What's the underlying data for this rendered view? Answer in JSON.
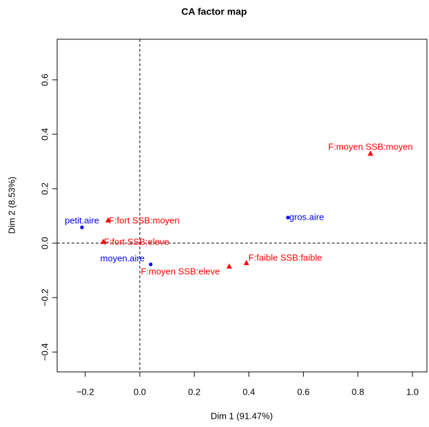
{
  "chart_data": {
    "type": "scatter",
    "title": "CA factor map",
    "xlabel": "Dim 1 (91.47%)",
    "ylabel": "Dim 2 (8.53%)",
    "xlim": [
      -0.303,
      1.053
    ],
    "ylim": [
      -0.473,
      0.749
    ],
    "xticks": [
      {
        "value": -0.2,
        "label": "−0.2"
      },
      {
        "value": 0,
        "label": "0.0"
      },
      0.2,
      0.4,
      0.6,
      0.8,
      {
        "value": 1,
        "label": "1.0"
      }
    ],
    "yticks": [
      {
        "value": -0.4,
        "label": "−0.4"
      },
      {
        "value": -0.2,
        "label": "−0.2"
      },
      {
        "value": 0,
        "label": "0.0"
      },
      0.2,
      0.4,
      0.6
    ],
    "hlines": [
      0
    ],
    "vlines": [
      0
    ],
    "series": [
      {
        "color": "#0000ff",
        "marker": "circle",
        "labels": [
          "petit.aire",
          "gros.aire",
          "moyen.aire"
        ],
        "x": [
          -0.212,
          0.543,
          0.04
        ],
        "y": [
          0.058,
          0.094,
          -0.078
        ]
      },
      {
        "color": "#ff0000",
        "marker": "triangle",
        "labels": [
          "F:fort SSB:moyen",
          "F:fort SSB:eleve",
          "F:moyen SSB:eleve",
          "F:faible SSB:faible",
          "F:moyen SSB:moyen"
        ],
        "x": [
          -0.116,
          -0.134,
          0.328,
          0.391,
          0.846
        ],
        "y": [
          0.084,
          0.005,
          -0.086,
          -0.073,
          0.329
        ]
      }
    ]
  }
}
